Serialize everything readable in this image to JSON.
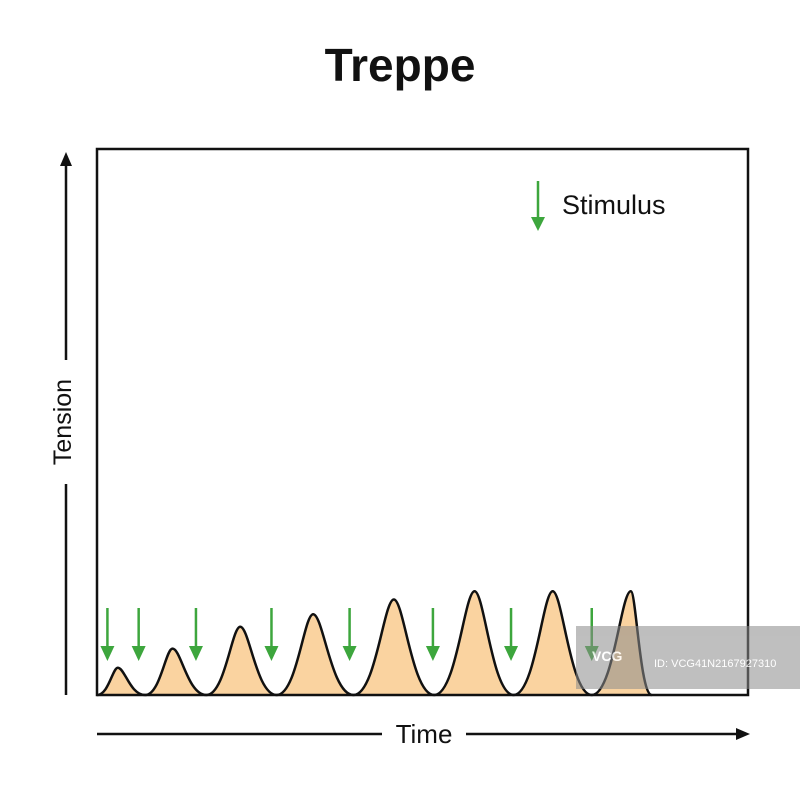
{
  "chart_data": {
    "type": "area",
    "title": "Treppe",
    "xlabel": "Time",
    "ylabel": "Tension",
    "legend": {
      "label": "Stimulus",
      "placement": "top-right"
    },
    "colors": {
      "fill": "#FAD3A0",
      "stroke": "#111111",
      "stimulus": "#3DA63D"
    },
    "xlim": [
      0,
      12.5
    ],
    "ylim": [
      0,
      10
    ],
    "series": [
      {
        "peaks": [
          {
            "t": 0.4,
            "value": 0.5
          },
          {
            "t": 1.45,
            "value": 0.85
          },
          {
            "t": 2.75,
            "value": 1.25
          },
          {
            "t": 4.15,
            "value": 1.48
          },
          {
            "t": 5.7,
            "value": 1.75
          },
          {
            "t": 7.25,
            "value": 1.9
          },
          {
            "t": 8.75,
            "value": 1.9
          },
          {
            "t": 10.25,
            "value": 1.9
          }
        ]
      }
    ],
    "stimuli_t": [
      0.2,
      0.8,
      1.9,
      3.35,
      4.85,
      6.45,
      7.95,
      9.5
    ]
  },
  "watermark": "ID: VCG41N2167927310"
}
